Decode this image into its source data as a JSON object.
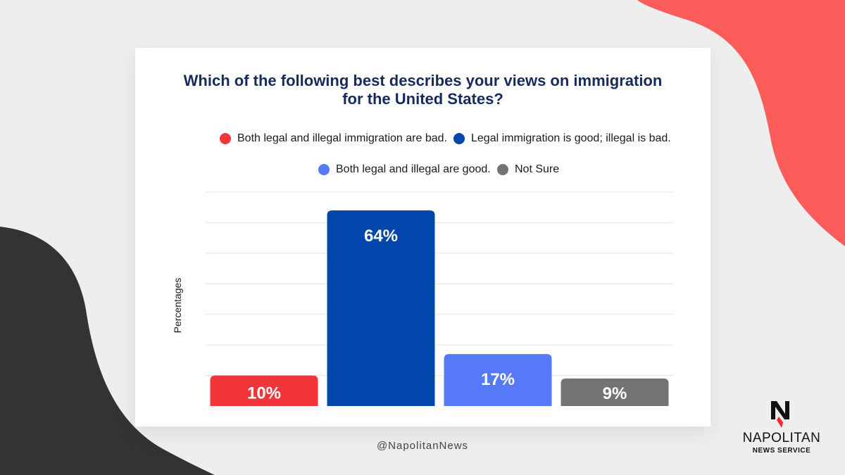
{
  "chart_data": {
    "type": "bar",
    "title": "Which of the following best describes your views on immigration for the United States?",
    "title_lines": [
      "Which of the following best describes your views on immigration",
      "for the United States?"
    ],
    "ylabel": "Percentages",
    "ylim": [
      0,
      70
    ],
    "grid": true,
    "legend_position": "top",
    "categories": [
      "Both legal and illegal immigration are bad.",
      "Legal immigration is good; illegal is bad.",
      "Both legal and illegal are good.",
      "Not Sure"
    ],
    "values": [
      10,
      64,
      17,
      9
    ],
    "value_labels": [
      "10%",
      "64%",
      "17%",
      "9%"
    ],
    "colors": [
      "#f1353a",
      "#0347ad",
      "#5679f8",
      "#737373"
    ]
  },
  "footer": {
    "handle": "@NapolitanNews"
  },
  "logo": {
    "name": "NAPOLITAN",
    "subtitle": "NEWS SERVICE"
  },
  "theme": {
    "background": "#eeeeee",
    "accent_coral": "#fc5d5b",
    "accent_dark": "#333333",
    "title_color": "#172a5e"
  }
}
